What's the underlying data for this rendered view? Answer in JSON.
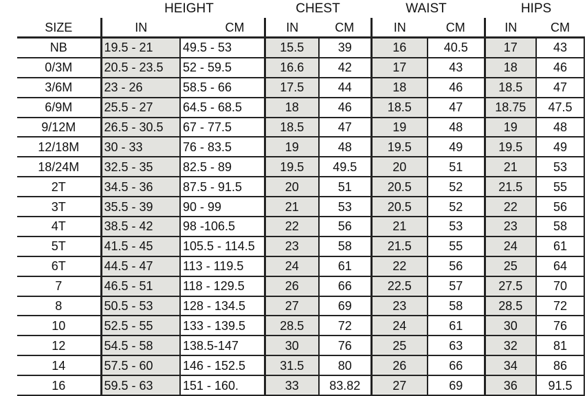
{
  "groups": [
    "HEIGHT",
    "CHEST",
    "WAIST",
    "HIPS"
  ],
  "headers": {
    "size": "SIZE",
    "in": "IN",
    "cm": "CM"
  },
  "rows": [
    [
      "NB",
      "19.5 - 21",
      "49.5 - 53",
      "15.5",
      "39",
      "16",
      "40.5",
      "17",
      "43"
    ],
    [
      "0/3M",
      "20.5 - 23.5",
      "52 - 59.5",
      "16.6",
      "42",
      "17",
      "43",
      "18",
      "46"
    ],
    [
      "3/6M",
      "23 - 26",
      "58.5 - 66",
      "17.5",
      "44",
      "18",
      "46",
      "18.5",
      "47"
    ],
    [
      "6/9M",
      "25.5 - 27",
      "64.5 - 68.5",
      "18",
      "46",
      "18.5",
      "47",
      "18.75",
      "47.5"
    ],
    [
      "9/12M",
      "26.5 - 30.5",
      "67 - 77.5",
      "18.5",
      "47",
      "19",
      "48",
      "19",
      "48"
    ],
    [
      "12/18M",
      "30 -  33",
      "76 - 83.5",
      "19",
      "48",
      "19.5",
      "49",
      "19.5",
      "49"
    ],
    [
      "18/24M",
      "32.5 - 35",
      "82.5 - 89",
      "19.5",
      "49.5",
      "20",
      "51",
      "21",
      "53"
    ],
    [
      "2T",
      "34.5 - 36",
      "87.5 - 91.5",
      "20",
      "51",
      "20.5",
      "52",
      "21.5",
      "55"
    ],
    [
      "3T",
      "35.5 - 39",
      "90 - 99",
      "21",
      "53",
      "20.5",
      "52",
      "22",
      "56"
    ],
    [
      "4T",
      "38.5 - 42",
      "98 -106.5",
      "22",
      "56",
      "21",
      "53",
      "23",
      "58"
    ],
    [
      "5T",
      "41.5 - 45",
      "105.5 - 114.5",
      "23",
      "58",
      "21.5",
      "55",
      "24",
      "61"
    ],
    [
      "6T",
      "44.5 - 47",
      "113 - 119.5",
      "24",
      "61",
      "22",
      "56",
      "25",
      "64"
    ],
    [
      "7",
      "46.5 - 51",
      "118 - 129.5",
      "26",
      "66",
      "22.5",
      "57",
      "27.5",
      "70"
    ],
    [
      "8",
      "50.5 - 53",
      "128 - 134.5",
      "27",
      "69",
      "23",
      "58",
      "28.5",
      "72"
    ],
    [
      "10",
      "52.5 - 55",
      "133 - 139.5",
      "28.5",
      "72",
      "24",
      "61",
      "30",
      "76"
    ],
    [
      "12",
      "54.5 - 58",
      "138.5-147",
      "30",
      "76",
      "25",
      "63",
      "32",
      "81"
    ],
    [
      "14",
      "57.5 - 60",
      "146 - 152.5",
      "31.5",
      "80",
      "26",
      "66",
      "34",
      "86"
    ],
    [
      "16",
      "59.5 - 63",
      "151 - 160.",
      "33",
      "83.82",
      "27",
      "69",
      "36",
      "91.5"
    ]
  ],
  "colors": {
    "in_cell_bg": "#e3e3df",
    "border": "#222222"
  }
}
